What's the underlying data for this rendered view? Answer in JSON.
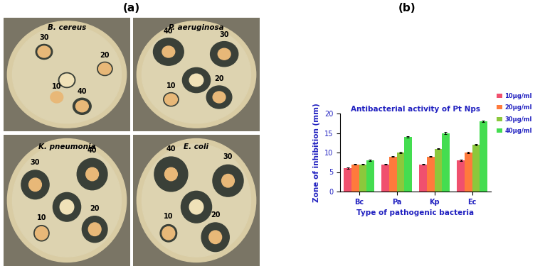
{
  "panel_labels": [
    "(a)",
    "(b)"
  ],
  "plates": [
    {
      "name": "B. cereus",
      "disc_labels": [
        10,
        20,
        30,
        40
      ]
    },
    {
      "name": "P. aeruginosa",
      "disc_labels": [
        10,
        20,
        30,
        40
      ]
    },
    {
      "name": "K. pneumonia",
      "disc_labels": [
        10,
        20,
        30,
        40
      ]
    },
    {
      "name": "E. coli",
      "disc_labels": [
        10,
        20,
        30,
        40
      ]
    }
  ],
  "chart_data": {
    "type": "bar",
    "title": "Antibacterial activity of Pt Nps",
    "x_label": "Type of pathogenic bacteria",
    "y_label": "Zone of inhibition (mm)",
    "categories": [
      "Bc",
      "Pa",
      "Kp",
      "Ec"
    ],
    "series": [
      {
        "name": "10µg/ml",
        "color": "#f0506e",
        "values": [
          6,
          7,
          7,
          8
        ],
        "errors": [
          0.1,
          0.1,
          0.1,
          0.15
        ]
      },
      {
        "name": "20µg/ml",
        "color": "#ff7a3c",
        "values": [
          7,
          9,
          9,
          10
        ],
        "errors": [
          0.1,
          0.1,
          0.1,
          0.15
        ]
      },
      {
        "name": "30µg/ml",
        "color": "#8cc83c",
        "values": [
          7,
          10,
          11,
          12
        ],
        "errors": [
          0.1,
          0.1,
          0.15,
          0.15
        ]
      },
      {
        "name": "40µg/ml",
        "color": "#44dd50",
        "values": [
          8,
          14,
          15,
          18
        ],
        "errors": [
          0.1,
          0.2,
          0.2,
          0.2
        ]
      }
    ],
    "ylim": [
      0,
      20
    ],
    "yticks": [
      0,
      5,
      10,
      15,
      20
    ],
    "legend": "right",
    "grid": false
  }
}
